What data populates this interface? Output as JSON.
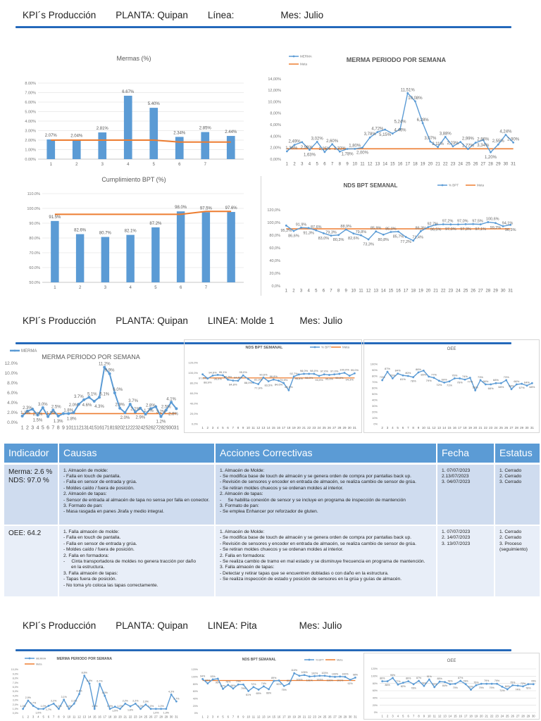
{
  "sections": [
    {
      "title": "KPI´s Producción",
      "planta": "PLANTA: Quipan",
      "linea": "Línea:",
      "mes": "Mes: Julio"
    },
    {
      "title": "KPI´s Producción",
      "planta": "PLANTA: Quipan",
      "linea": "LINEA: Molde 1",
      "mes": "Mes: Julio"
    },
    {
      "title": "KPI´s Producción",
      "planta": "PLANTA: Quipan",
      "linea": "LINEA: Pita",
      "mes": "Mes: Julio"
    }
  ],
  "colors": {
    "bar": "#5b9bd5",
    "series": "#5b9bd5",
    "meta": "#ed7d31",
    "grid": "#d9d9d9",
    "header": "#5b9bd5",
    "rule": "#1f5fae"
  },
  "chart_data": [
    {
      "type": "bar",
      "title": "Mermas (%)",
      "categories": [
        "1",
        "2",
        "3",
        "4",
        "5",
        "6",
        "7",
        ""
      ],
      "values": [
        2.07,
        2.04,
        2.81,
        6.67,
        5.4,
        2.34,
        2.85,
        2.44
      ],
      "meta": [
        2.0,
        2.0,
        2.0,
        2.0,
        2.0,
        1.8,
        1.8,
        1.8
      ],
      "ylim": [
        0,
        8
      ],
      "y_ticks": [
        "0.00%",
        "1.00%",
        "2.00%",
        "3.00%",
        "4.00%",
        "5.00%",
        "6.00%",
        "7.00%",
        "8.00%"
      ],
      "labels": [
        "2.07%",
        "2.04%",
        "2.81%",
        "6.67%",
        "5.40%",
        "2.34%",
        "2.85%",
        "2.44%"
      ],
      "grid": true
    },
    {
      "type": "line",
      "title": "MERMA PERIODO POR SEMANA",
      "legend": [
        "MERMA",
        "Meta"
      ],
      "legend_position": "top-left",
      "x": [
        1,
        2,
        3,
        4,
        5,
        6,
        7,
        8,
        9,
        10,
        11,
        12,
        13,
        14,
        15,
        16,
        17,
        18,
        19,
        20,
        21,
        22,
        23,
        24,
        25,
        26,
        27,
        28,
        29,
        30,
        31
      ],
      "values": [
        1.36,
        2.49,
        2.96,
        1.63,
        3.02,
        1.25,
        2.6,
        1.32,
        1.78,
        1.8,
        2.0,
        3.78,
        4.72,
        5.15,
        4.46,
        5.24,
        11.51,
        10.08,
        6.28,
        3.07,
        2.11,
        3.88,
        2.23,
        2.99,
        1.77,
        2.86,
        3.34,
        1.2,
        2.55,
        4.24,
        2.9
      ],
      "meta": 1.8,
      "ylim": [
        0,
        14
      ],
      "y_ticks": [
        "0,00%",
        "2,00%",
        "4,00%",
        "6,00%",
        "8,00%",
        "10,00%",
        "12,00%",
        "14,00%"
      ],
      "label_decimals": 2,
      "label_sep": ",",
      "grid": false
    },
    {
      "type": "bar",
      "title": "Cumplimiento BPT (%)",
      "categories": [
        "1",
        "2",
        "3",
        "4",
        "5",
        "6",
        "7",
        ""
      ],
      "values": [
        91.5,
        82.6,
        80.7,
        82.1,
        87.2,
        98.0,
        97.5,
        97.6
      ],
      "meta": [
        96,
        96,
        96,
        96,
        96,
        96,
        98,
        98
      ],
      "ylim": [
        50,
        110
      ],
      "y_ticks": [
        "50.0%",
        "60.0%",
        "70.0%",
        "80.0%",
        "90.0%",
        "100.0%",
        "110.0%"
      ],
      "labels": [
        "91.5%",
        "82.6%",
        "80.7%",
        "82.1%",
        "87.2%",
        "98.0%",
        "97.5%",
        "97.6%"
      ],
      "grid": true
    },
    {
      "type": "line",
      "title": "NDS BPT SEMANAL",
      "legend": [
        "% BPT",
        "Meta"
      ],
      "legend_position": "top-right",
      "x": [
        1,
        2,
        3,
        4,
        5,
        6,
        7,
        8,
        9,
        10,
        11,
        12,
        13,
        14,
        15,
        16,
        17,
        18,
        19,
        20,
        21,
        22,
        23,
        24,
        25,
        26,
        27,
        28,
        29,
        30,
        31
      ],
      "values": [
        95.2,
        86.6,
        91.9,
        91.3,
        87.6,
        83.0,
        79.3,
        80.3,
        88.9,
        82.6,
        79.8,
        73.3,
        85.9,
        80.8,
        85.0,
        85.7,
        77.2,
        71.4,
        86.3,
        92.7,
        96.5,
        97.2,
        97.0,
        97.0,
        97.3,
        97.5,
        97.1,
        100.6,
        99.2,
        94.1,
        96.3
      ],
      "meta": 90,
      "ylim": [
        0,
        120
      ],
      "y_ticks": [
        "0,0%",
        "20,0%",
        "40,0%",
        "60,0%",
        "80,0%",
        "100,0%",
        "120,0%"
      ],
      "label_decimals": 1,
      "label_sep": ",",
      "grid": false
    },
    {
      "type": "line",
      "title": "MERMA PERIODO POR SEMANA",
      "legend": [
        "MERMA"
      ],
      "x": [
        1,
        2,
        3,
        4,
        5,
        6,
        7,
        8,
        9,
        10,
        11,
        12,
        13,
        14,
        15,
        16,
        17,
        18,
        19,
        20,
        21,
        22,
        23,
        24,
        25,
        26,
        27,
        28,
        29,
        30,
        31
      ],
      "values": [
        1.3,
        2.3,
        2.7,
        1.5,
        3.0,
        1.2,
        2.5,
        1.3,
        1.8,
        1.8,
        2.0,
        3.7,
        4.6,
        5.1,
        4.3,
        5.1,
        11.2,
        9.9,
        6.0,
        2.9,
        2.0,
        3.7,
        2.1,
        2.9,
        1.7,
        2.8,
        3.2,
        1.2,
        2.5,
        4.1,
        2.8
      ],
      "meta": 1.8,
      "ylim": [
        0,
        12
      ],
      "y_ticks": [
        "0.0%",
        "2.0%",
        "4.0%",
        "6.0%",
        "8.0%",
        "10.0%",
        "12.0%"
      ],
      "label_decimals": 1,
      "label_sep": ".",
      "grid": false
    },
    {
      "type": "line",
      "title": "NDS BPT SEMANAL",
      "legend": [
        "% BPT",
        "Meta"
      ],
      "x": [
        1,
        2,
        3,
        4,
        5,
        6,
        7,
        8,
        9,
        10,
        11,
        12,
        13,
        14,
        15,
        16,
        17,
        18,
        19,
        20,
        21,
        22,
        23,
        24,
        25,
        26,
        27,
        28,
        29,
        30,
        31
      ],
      "values": [
        97.0,
        88.9,
        94.6,
        96.0,
        95.1,
        86.5,
        84.8,
        84.5,
        95.0,
        88.0,
        81.0,
        77.9,
        90.6,
        83.5,
        86.8,
        84.6,
        79.9,
        65.9,
        92.7,
        96.8,
        98.0,
        98.0,
        98.0,
        93.9,
        97.0,
        95.9,
        97.0,
        98.0,
        100.0,
        94.3,
        99.0
      ],
      "meta": 90,
      "ylim": [
        0,
        120
      ],
      "y_ticks": [
        "0,0%",
        "20,0%",
        "40,0%",
        "60,0%",
        "80,0%",
        "100,0%",
        "120,0%"
      ],
      "label_decimals": 1,
      "label_sep": ",",
      "grid": false
    },
    {
      "type": "line",
      "title": "OEE",
      "x": [
        2,
        3,
        4,
        5,
        6,
        7,
        8,
        9,
        10,
        11,
        12,
        13,
        14,
        15,
        16,
        17,
        18,
        19,
        20,
        21,
        22,
        23,
        24,
        25,
        26,
        27,
        28,
        29,
        30,
        31
      ],
      "values": [
        73,
        87,
        76,
        84,
        81,
        80,
        78,
        86,
        89,
        79,
        77,
        72,
        69,
        71,
        76,
        76,
        74,
        77,
        56,
        73,
        66,
        66,
        68,
        68,
        73,
        58,
        66,
        67,
        64,
        68
      ],
      "ylim": [
        0,
        100
      ],
      "y_ticks": [
        "0%",
        "10%",
        "20%",
        "30%",
        "40%",
        "50%",
        "60%",
        "70%",
        "80%",
        "90%",
        "100%"
      ],
      "label_decimals": 0,
      "label_sep": ".",
      "grid": false
    },
    {
      "type": "line",
      "title": "MERMA PERIODO POR SEMANA",
      "legend": [
        "MERMA",
        "Meta"
      ],
      "x": [
        1,
        2,
        3,
        4,
        5,
        6,
        7,
        8,
        9,
        10,
        11,
        12,
        13,
        14,
        15,
        16,
        17,
        18,
        19,
        20,
        21,
        22,
        23,
        24,
        25,
        26,
        27,
        28,
        29,
        30,
        31
      ],
      "values": [
        1.0,
        2.9,
        1.7,
        1.0,
        1.0,
        1.7,
        2.2,
        1.0,
        3.1,
        1.0,
        2.2,
        4.4,
        8.6,
        6.8,
        1.0,
        6.7,
        4.0,
        1.0,
        1.5,
        1.0,
        2.2,
        1.6,
        2.2,
        1.0,
        2.0,
        1.0,
        1.0,
        1.0,
        1.0,
        4.3,
        2.7
      ],
      "ylim": [
        0,
        10
      ],
      "y_ticks": [
        "0,0%",
        "1,0%",
        "2,0%",
        "3,0%",
        "4,0%",
        "5,0%",
        "6,0%",
        "7,0%",
        "8,0%",
        "9,0%",
        "10,0%"
      ],
      "label_decimals": 1,
      "label_sep": ",",
      "grid": false
    },
    {
      "type": "line",
      "title": "NDS BPT SEMANAL",
      "legend": [
        "% BPT",
        "Meta"
      ],
      "x": [
        1,
        2,
        3,
        4,
        5,
        6,
        7,
        8,
        9,
        10,
        11,
        12,
        13,
        14,
        15,
        16,
        17,
        18,
        19,
        20,
        21,
        22,
        23,
        24,
        25,
        26,
        27,
        28,
        29,
        30,
        31
      ],
      "values": [
        94,
        82,
        93,
        95,
        67,
        78,
        68,
        79,
        79,
        61,
        72,
        65,
        74,
        66,
        89,
        90,
        75,
        81,
        110,
        103,
        105,
        101,
        102,
        103,
        103,
        101,
        100,
        101,
        100,
        92,
        98
      ],
      "meta": 90,
      "ylim": [
        0,
        120
      ],
      "y_ticks": [
        "0%",
        "20%",
        "40%",
        "60%",
        "80%",
        "100%",
        "120%"
      ],
      "label_decimals": 0,
      "label_sep": ".",
      "grid": false
    },
    {
      "type": "line",
      "title": "OEE",
      "x": [
        1,
        2,
        3,
        4,
        5,
        6,
        7,
        8,
        9,
        10,
        11,
        12,
        13,
        14,
        15,
        16,
        17,
        18,
        19,
        20,
        21,
        22,
        23,
        24,
        25,
        26,
        27,
        28,
        29,
        30
      ],
      "values": [
        86,
        86,
        95,
        77,
        82,
        86,
        78,
        87,
        73,
        91,
        70,
        85,
        84,
        78,
        79,
        87,
        78,
        63,
        75,
        79,
        79,
        79,
        79,
        71,
        64,
        75,
        74,
        72,
        78,
        78
      ],
      "ylim": [
        0,
        120
      ],
      "y_ticks": [
        "0%",
        "20%",
        "40%",
        "60%",
        "80%",
        "100%",
        "120%"
      ],
      "label_decimals": 0,
      "label_sep": ".",
      "grid": true
    }
  ],
  "table": {
    "headers": [
      "Indicador",
      "Causas",
      "Acciones Correctivas",
      "Fecha",
      "Estatus"
    ],
    "rows": [
      {
        "indicador": "Merma: 2.6 %\nNDS: 97.0 %",
        "causas": "1. Almacén de molde:\n- Falla en touch de pantalla.\n- Falla en sensor de entrada y grúa.\n- Moldes caído / fuera de posición.\n2. Almacén de tapas:\n- Sensor de entrada al almacén de tapa no sensa por falla en conector.\n3. Formato de pan:\n- Masa rasgada en panes Jirafa y medio integral.",
        "acciones": "1. Almacén de Molde:\n- Se modifica base de touch de almacén y se genera orden de compra por pantallas back up.\n- Revisión de sensores y encoder en entrada de almacén, se realiza cambio de sensor de grúa.\n- Se retiran moldes chuecos y se ordenan moldes al interior.\n2. Almacén de tapas:\n-     Se habilita conexión de sensor y se incluye en programa de inspección de mantención\n3. Formato de pan:\n- Se emplea Enhancer por reforzador de gluten.",
        "fecha": "1. 07/07/2023\n2.13/07/2023\n3. 04/07/2023",
        "estatus": "1. Cerrado\n2. Cerrado\n3. Cerrado"
      },
      {
        "indicador": "OEE: 64.2",
        "causas": "1. Falla almacén de molde:\n- Falla en touch de pantalla.\n- Falla en sensor de entrada y grúa.\n- Moldes caído / fuera de posición.\n2. Falla en formadora:\n-     Cinta transportadora de moldes no genera tracción por daño\n      en la estructura.\n3. Falla almacén de tapas:\n- Tapas fuera de posición.\n- No toma y/o coloca las tapas correctamente.",
        "acciones": "1. Almacén de Molde:\n- Se modifica base de touch de almacén y se genera orden de compra por pantallas back up.\n- Revisión de sensores y encoder en entrada de almacén, se realiza cambio de sensor de grúa.\n- Se retiran moldes chuecos y se ordenan moldes al interior.\n2. Falla en formadora:\n- Se realiza cambio de tramo en mal estado y se disminuye frecuencia en programa de mantención.\n3. Falla almacén de tapas:\n- Detectar y retirar tapas que se encuentren dobladas o con daño en la estructura.\n- Se realiza inspección de estado y posición de sensores en la grúa y guías de almacén.",
        "fecha": "1. 07/07/2023\n2. 14/07/2023\n3. 13/07/2023",
        "estatus": "1. Cerrado\n2. Cerrado\n3. Proceso\n(seguimiento)"
      }
    ]
  }
}
